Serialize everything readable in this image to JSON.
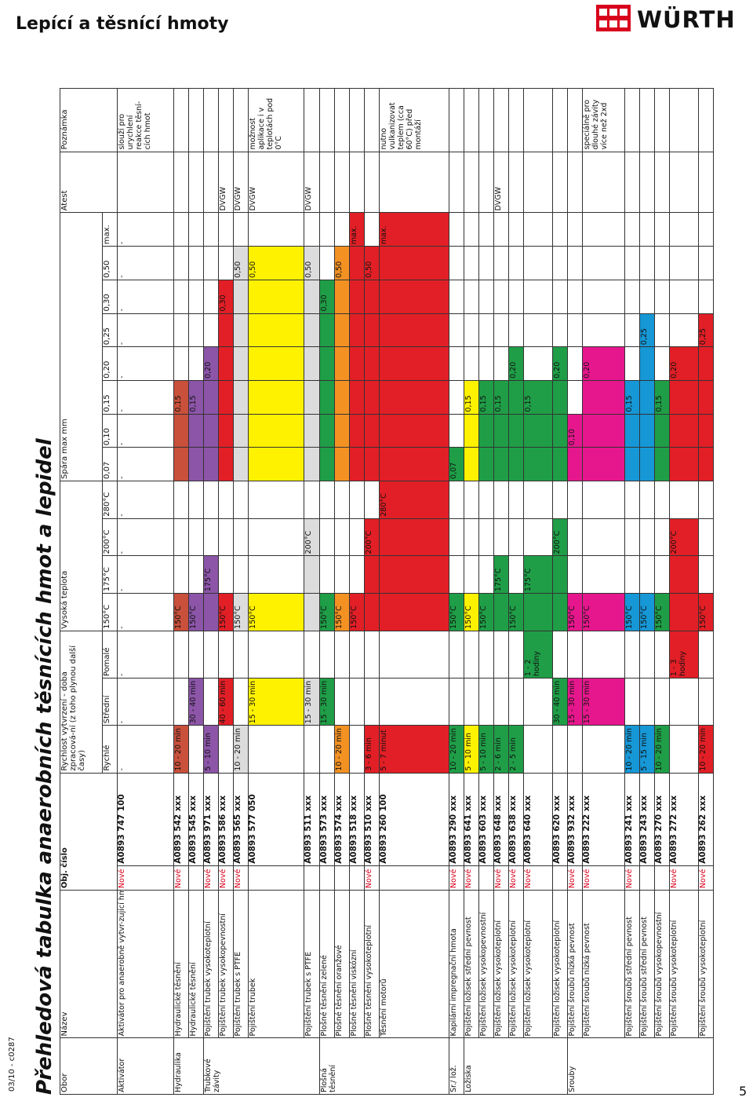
{
  "header": {
    "title": "Lepící a těsnící hmoty",
    "brand": "WÜRTH"
  },
  "code": "03/10 - c0287",
  "main_title": "Přehledová tabulka anaerobních těsnících hmot a lepidel",
  "page_number": "5",
  "colors": {
    "brown": "#c9503b",
    "purple": "#8c55a8",
    "red": "#e21f26",
    "grey": "#dcdcdc",
    "yellow": "#fff200",
    "green": "#1f9e47",
    "orange": "#f39223",
    "magenta": "#e6178d",
    "blue": "#1697d6"
  },
  "columns": {
    "obor": "Obor",
    "nazev": "Název",
    "obj": "Obj. číslo",
    "rychlost": "Rychlost vytvrzení - doba zpracová-ní (z toho plynou další časy)",
    "teplota": "Vysoká teplota",
    "spara": "Spára max mm",
    "atest": "Atest",
    "poznamka": "Poznámka",
    "speed": [
      "Rychlé",
      "Střední",
      "Pomalé"
    ],
    "temps": [
      "150°C",
      "175°C",
      "200°C",
      "280°C"
    ],
    "gaps": [
      "0,07",
      "0,10",
      "0,15",
      "0,20",
      "0,25",
      "0,30",
      "0,50",
      "max."
    ]
  },
  "rows": [
    {
      "group": "Aktivátor",
      "name": "Aktivátor pro anaerobně vytvr-zující hmoty",
      "new": "Nové",
      "num": "A0893 747 100",
      "speed": [
        "-",
        "-",
        "-"
      ],
      "tempfill": [],
      "templabel": "",
      "tempdash": [
        "-",
        "-",
        "-",
        "-"
      ],
      "gapdash": [
        "-",
        "-",
        "-",
        "-",
        "-",
        "-",
        "-",
        "-"
      ],
      "gapfill": 0,
      "gaplabel": "",
      "atest": "",
      "note": "slouží pro urychlení reakce těsní-cích hmot"
    },
    {
      "group": "Hydraulika",
      "name": "Hydraulické těsnění",
      "new": "Nové",
      "num": "A0893 542 xxx",
      "speed": [
        "10 - 20 min",
        "",
        ""
      ],
      "speedcell": 0,
      "color": "brown",
      "tempfill": 1,
      "templabel": "150°C",
      "gapfill": 3,
      "gaplabel": "0,15",
      "atest": "",
      "note": ""
    },
    {
      "group": "",
      "name": "Hydraulické těsnění",
      "new": "",
      "num": "A0893 545 xxx",
      "speed": [
        "",
        "30 - 40 min",
        ""
      ],
      "speedcell": 1,
      "color": "purple",
      "tempfill": 1,
      "templabel": "150°C",
      "gapfill": 3,
      "gaplabel": "0,15",
      "atest": "",
      "note": ""
    },
    {
      "group": "Trubkové závity",
      "name": "Pojištění trubek vysokoteplotní",
      "new": "Nové",
      "num": "A0893 971 xxx",
      "speed": [
        "5 - 10 min",
        "",
        ""
      ],
      "speedcell": 0,
      "color": "purple",
      "tempfill": 2,
      "templabel": "175°C",
      "gapfill": 4,
      "gaplabel": "0,20",
      "atest": "",
      "note": ""
    },
    {
      "group": "",
      "name": "Pojištění trubek vysokopevnostní",
      "new": "Nové",
      "num": "A0893 586 xxx",
      "speed": [
        "",
        "40 - 60 min",
        ""
      ],
      "speedcell": 1,
      "color": "red",
      "tempfill": 1,
      "templabel": "150°C",
      "gapfill": 6,
      "gaplabel": "0,30",
      "atest": "DVGW",
      "note": ""
    },
    {
      "group": "",
      "name": "Pojištění trubek s PTFE",
      "new": "Nové",
      "num": "A0893 565 xxx",
      "speed": [
        "10 - 20 min",
        "",
        ""
      ],
      "speedcell": 0,
      "color": "grey",
      "tempfill": 1,
      "templabel": "150°C",
      "gapfill": 7,
      "gaplabel": "0,50",
      "atest": "DVGW",
      "note": ""
    },
    {
      "group": "",
      "name": "Pojištění trubek",
      "new": "",
      "num": "A0893 577 050",
      "speed": [
        "",
        "15 - 30 min",
        ""
      ],
      "speedcell": 1,
      "color": "yellow",
      "tempfill": 1,
      "templabel": "150°C",
      "gapfill": 7,
      "gaplabel": "0,50",
      "atest": "DVGW",
      "note": "možnost aplikace i v teplotách pod 0°C"
    },
    {
      "group": "",
      "name": "Pojištění trubek s PTFE",
      "new": "",
      "num": "A0893 511 xxx",
      "speed": [
        "",
        "15 - 30 min",
        ""
      ],
      "speedcell": 1,
      "color": "grey",
      "tempfill": 3,
      "templabel": "200°C",
      "gapfill": 7,
      "gaplabel": "0,50",
      "atest": "DVGW",
      "note": ""
    },
    {
      "group": "Plošná těsnění",
      "name": "Plošné těsnění zelené",
      "new": "",
      "num": "A0893 573 xxx",
      "speed": [
        "",
        "15 - 30 min",
        ""
      ],
      "speedcell": 1,
      "color": "green",
      "tempfill": 1,
      "templabel": "150°C",
      "gapfill": 6,
      "gaplabel": "0,30",
      "atest": "",
      "note": ""
    },
    {
      "group": "",
      "name": "Plošné těsnění oranžové",
      "new": "",
      "num": "A0893 574 xxx",
      "speed": [
        "10 - 20 min",
        "",
        ""
      ],
      "speedcell": 0,
      "color": "orange",
      "tempfill": 1,
      "templabel": "150°C",
      "gapfill": 7,
      "gaplabel": "0,50",
      "atest": "",
      "note": ""
    },
    {
      "group": "",
      "name": "Plošné těsnění viskózní",
      "new": "",
      "num": "A0893 518 xxx",
      "speed": [
        "",
        "",
        ""
      ],
      "speedcell": -1,
      "color": "red",
      "tempfill": 1,
      "templabel": "150°C",
      "gapfill": 8,
      "gaplabel": "max.",
      "atest": "",
      "note": ""
    },
    {
      "group": "",
      "name": "Plošné těsnění vysokoteplotní",
      "new": "Nové",
      "num": "A0893 510 xxx",
      "speed": [
        "3 - 6 min",
        "",
        ""
      ],
      "speedcell": 0,
      "color": "red",
      "tempfill": 3,
      "templabel": "200°C",
      "gapfill": 7,
      "gaplabel": "0,50",
      "atest": "",
      "note": ""
    },
    {
      "group": "",
      "name": "Těsnění motorů",
      "new": "",
      "num": "A0893 260 100",
      "speed": [
        "5 - 7 minut",
        "",
        ""
      ],
      "speedcell": 0,
      "color": "red",
      "tempfill": 4,
      "templabel": "280°C",
      "gapfill": 8,
      "gaplabel": "max.",
      "atest": "",
      "note": "nutno vulkanizovat teplem (cca 60°C) před montáží"
    },
    {
      "group": "Šr./ lož.",
      "name": "Kapilární impregnační hmota",
      "new": "Nové",
      "num": "A0893 290 xxx",
      "speed": [
        "10 - 20 min",
        "",
        ""
      ],
      "speedcell": 0,
      "color": "green",
      "tempfill": 1,
      "templabel": "150°C",
      "gapfill": 1,
      "gaplabel": "0,07",
      "atest": "",
      "note": ""
    },
    {
      "group": "Ložiska",
      "name": "Pojištění ložisek střední pevnost",
      "new": "Nové",
      "num": "A0893 641 xxx",
      "speed": [
        "5 - 10 min",
        "",
        ""
      ],
      "speedcell": 0,
      "color": "yellow",
      "tempfill": 1,
      "templabel": "150°C",
      "gapfill": 3,
      "gaplabel": "0,15",
      "atest": "",
      "note": ""
    },
    {
      "group": "",
      "name": "Pojištění ložisek vysokopevnostní",
      "new": "",
      "num": "A0893 603 xxx",
      "speed": [
        "5 - 10 min",
        "",
        ""
      ],
      "speedcell": 0,
      "color": "green",
      "tempfill": 1,
      "templabel": "150°C",
      "gapfill": 3,
      "gaplabel": "0,15",
      "atest": "",
      "note": ""
    },
    {
      "group": "",
      "name": "Pojištění ložisek vysokoteplotní",
      "new": "Nové",
      "num": "A0893 648 xxx",
      "speed": [
        "2 - 6 min",
        "",
        ""
      ],
      "speedcell": 0,
      "color": "green",
      "tempfill": 2,
      "templabel": "175°C",
      "gapfill": 3,
      "gaplabel": "0,15",
      "atest": "DVGW",
      "note": ""
    },
    {
      "group": "",
      "name": "Pojištění ložisek vysokoteplotní",
      "new": "Nové",
      "num": "A0893 638 xxx",
      "speed": [
        "2 - 5 min",
        "",
        ""
      ],
      "speedcell": 0,
      "color": "green",
      "tempfill": 1,
      "templabel": "150°C",
      "gapfill": 4,
      "gaplabel": "0,20",
      "atest": "",
      "note": ""
    },
    {
      "group": "",
      "name": "Pojištění ložisek vysokoteplotní",
      "new": "Nové",
      "num": "A0893 640 xxx",
      "speed": [
        "",
        "",
        "1 - 2 hodiny"
      ],
      "speedcell": 2,
      "color": "green",
      "tempfill": 2,
      "templabel": "175°C",
      "gapfill": 3,
      "gaplabel": "0,15",
      "atest": "",
      "note": ""
    },
    {
      "group": "",
      "name": "Pojištění ložisek vysokoteplotní",
      "new": "",
      "num": "A0893 620 xxx",
      "speed": [
        "",
        "30 - 40 min",
        ""
      ],
      "speedcell": 1,
      "color": "green",
      "tempfill": 3,
      "templabel": "200°C",
      "gapfill": 4,
      "gaplabel": "0,20",
      "atest": "",
      "note": ""
    },
    {
      "group": "Šrouby",
      "name": "Pojištění šroubů nízká pevnost",
      "new": "Nové",
      "num": "A0893 932 xxx",
      "speed": [
        "",
        "15 - 30 min",
        ""
      ],
      "speedcell": 1,
      "color": "magenta",
      "tempfill": 1,
      "templabel": "150°C",
      "gapfill": 2,
      "gaplabel": "0,10",
      "atest": "",
      "note": ""
    },
    {
      "group": "",
      "name": "Pojištění šroubů nízká pevnost",
      "new": "Nové",
      "num": "A0893 222 xxx",
      "speed": [
        "",
        "15 - 30 min",
        ""
      ],
      "speedcell": 1,
      "color": "magenta",
      "tempfill": 1,
      "templabel": "150°C",
      "gapfill": 4,
      "gaplabel": "0,20",
      "atest": "",
      "note": "speciálně pro dlouhé závity více než 2xd"
    },
    {
      "group": "",
      "name": "Pojištění šroubů střední pevnost",
      "new": "Nové",
      "num": "A0893 241 xxx",
      "speed": [
        "10 - 20 min",
        "",
        ""
      ],
      "speedcell": 0,
      "color": "blue",
      "tempfill": 1,
      "templabel": "150°C",
      "gapfill": 3,
      "gaplabel": "0,15",
      "atest": "",
      "note": ""
    },
    {
      "group": "",
      "name": "Pojištění šroubů střední pevnost",
      "new": "",
      "num": "A0893 243 xxx",
      "speed": [
        "5 - 15 min",
        "",
        ""
      ],
      "speedcell": 0,
      "color": "blue",
      "tempfill": 1,
      "templabel": "150°C",
      "gapfill": 5,
      "gaplabel": "0,25",
      "atest": "",
      "note": ""
    },
    {
      "group": "",
      "name": "Pojištění šroubů vysokopevnostní",
      "new": "",
      "num": "A0893 270 xxx",
      "speed": [
        "10 - 20 min",
        "",
        ""
      ],
      "speedcell": 0,
      "color": "green",
      "tempfill": 1,
      "templabel": "150°C",
      "gapfill": 3,
      "gaplabel": "0,15",
      "atest": "",
      "note": ""
    },
    {
      "group": "",
      "name": "Pojištění šroubů vysokoteplotní",
      "new": "Nové",
      "num": "A0893 272 xxx",
      "speed": [
        "",
        "",
        "1 - 3 hodiny"
      ],
      "speedcell": 2,
      "color": "red",
      "tempfill": 3,
      "templabel": "200°C",
      "gapfill": 4,
      "gaplabel": "0,20",
      "atest": "",
      "note": ""
    },
    {
      "group": "",
      "name": "Pojištění šroubů vysokoteplotní",
      "new": "Nové",
      "num": "A0893 262 xxx",
      "speed": [
        "10 - 20 min",
        "",
        ""
      ],
      "speedcell": 0,
      "color": "red",
      "tempfill": 1,
      "templabel": "150°C",
      "gapfill": 5,
      "gaplabel": "0,25",
      "atest": "",
      "note": ""
    }
  ]
}
